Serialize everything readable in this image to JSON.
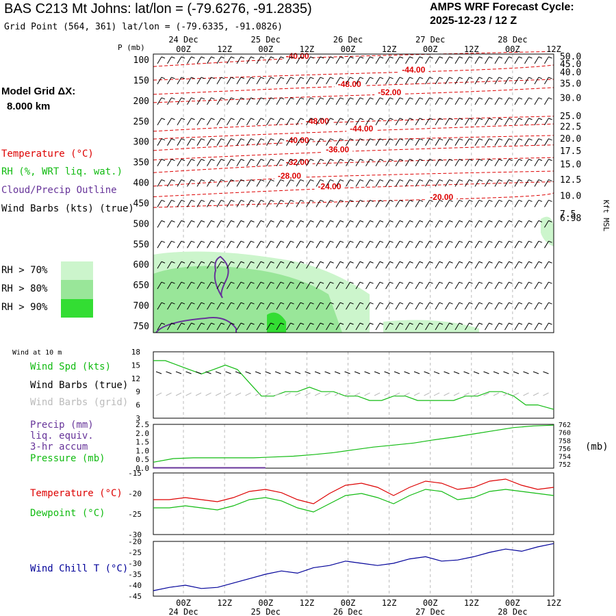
{
  "header": {
    "title": "BAS C213 Mt Johns:  lat/lon = (-79.6276, -91.2835)",
    "grid_point": "Grid Point (564, 361) lat/lon = (-79.6335, -91.0826)",
    "cycle_label": "AMPS WRF Forecast Cycle:",
    "cycle_value": "2025-12-23 / 12  Z",
    "model_grid_label": "Model Grid ΔX:",
    "model_grid_value": "8.000 km"
  },
  "upper_legend": {
    "temperature": "Temperature (°C)",
    "rh": "RH (%, WRT liq. wat.)",
    "cloud": "Cloud/Precip Outline",
    "wind": "Wind Barbs (kts) (true)",
    "rh70": "RH > 70%",
    "rh80": "RH > 80%",
    "rh90": "RH > 90%",
    "colors": {
      "rh70": "#ccf5cc",
      "rh80": "#99e699",
      "rh90": "#33dd33",
      "temp": "#dd0000",
      "rh": "#11bb11",
      "cloud": "#663399"
    }
  },
  "time_axis": {
    "hour_labels": [
      "00Z",
      "12Z",
      "00Z",
      "12Z",
      "00Z",
      "12Z",
      "00Z",
      "12Z",
      "00Z",
      "12Z"
    ],
    "date_labels": [
      "24 Dec",
      "25 Dec",
      "26 Dec",
      "27 Dec",
      "28 Dec"
    ]
  },
  "chart_data": [
    {
      "type": "contour",
      "name": "upper-air-cross-section",
      "ylabel": "P (mb)",
      "pressure_levels": [
        100,
        150,
        200,
        250,
        300,
        350,
        400,
        450,
        500,
        550,
        600,
        650,
        700,
        750
      ],
      "height_label": "Kft MSL",
      "height_ticks": [
        "50.0",
        "45.0",
        "40.0",
        "35.0",
        "30.0",
        "25.0",
        "22.5",
        "20.0",
        "17.5",
        "15.0",
        "12.5",
        "10.0",
        "7.5",
        "6.98"
      ],
      "height_tick_pressures": [
        92,
        110,
        130,
        158,
        193,
        237,
        263,
        292,
        322,
        355,
        392,
        432,
        476,
        486
      ],
      "temperature_labels": [
        {
          "value": "-40.00",
          "t": 0.36,
          "p": 97
        },
        {
          "value": "-44.00",
          "t": 0.65,
          "p": 130
        },
        {
          "value": "-48.00",
          "t": 0.49,
          "p": 165
        },
        {
          "value": "-52.00",
          "t": 0.59,
          "p": 185
        },
        {
          "value": "-48.00",
          "t": 0.41,
          "p": 255
        },
        {
          "value": "-44.00",
          "t": 0.52,
          "p": 274
        },
        {
          "value": "-40.00",
          "t": 0.36,
          "p": 302
        },
        {
          "value": "-36.00",
          "t": 0.46,
          "p": 325
        },
        {
          "value": "-32.00",
          "t": 0.36,
          "p": 356
        },
        {
          "value": "-28.00",
          "t": 0.34,
          "p": 389
        },
        {
          "value": "-24.00",
          "t": 0.44,
          "p": 415
        },
        {
          "value": "-20.00",
          "t": 0.72,
          "p": 441
        }
      ]
    },
    {
      "type": "line",
      "name": "wind-10m",
      "header": "Wind at 10 m",
      "series_label": "Wind Spd (kts)",
      "barbs_true_label": "Wind Barbs (true)",
      "barbs_grid_label": "Wind Barbs (grid)",
      "yticks": [
        3,
        6,
        9,
        12,
        15,
        18
      ],
      "ylim": [
        3,
        18
      ],
      "t": [
        0,
        0.03,
        0.06,
        0.09,
        0.12,
        0.15,
        0.18,
        0.21,
        0.24,
        0.27,
        0.3,
        0.33,
        0.36,
        0.39,
        0.42,
        0.45,
        0.48,
        0.51,
        0.54,
        0.57,
        0.6,
        0.63,
        0.66,
        0.69,
        0.72,
        0.75,
        0.78,
        0.81,
        0.84,
        0.87,
        0.9,
        0.93,
        0.96,
        1.0
      ],
      "values": [
        16,
        16,
        15,
        14,
        13,
        14,
        15,
        14,
        11,
        8,
        8,
        9,
        9,
        10,
        9,
        9,
        8,
        8,
        7,
        7,
        8,
        8,
        7,
        7,
        7,
        7,
        8,
        8,
        9,
        9,
        8,
        6,
        6,
        5
      ]
    },
    {
      "type": "line",
      "name": "precip-pressure",
      "precip_label": "Precip (mm)",
      "precip_sub1": "liq. equiv.",
      "precip_sub2": "3-hr accum",
      "pressure_label": "Pressure (mb)",
      "pressure_units": "(mb)",
      "left_ticks": [
        "2.5",
        "2.0",
        "1.5",
        "1.0",
        "0.5",
        "0.0"
      ],
      "right_ticks": [
        "762",
        "760",
        "758",
        "756",
        "754",
        "752"
      ],
      "ylim_left": [
        0,
        2.5
      ],
      "ylim_right": [
        751,
        762
      ],
      "t": [
        0,
        0.05,
        0.1,
        0.15,
        0.2,
        0.25,
        0.3,
        0.35,
        0.4,
        0.45,
        0.5,
        0.55,
        0.6,
        0.65,
        0.7,
        0.75,
        0.8,
        0.85,
        0.9,
        0.95,
        1.0
      ],
      "pressure": [
        752.5,
        753.4,
        753.6,
        753.6,
        753.6,
        753.6,
        753.8,
        754,
        754.4,
        754.9,
        755.6,
        756.3,
        756.8,
        757.3,
        758.1,
        758.8,
        759.6,
        760.4,
        761.2,
        761.6,
        761.8
      ],
      "precip_t": [
        0,
        0.28
      ],
      "precip": [
        0.02,
        0.02
      ]
    },
    {
      "type": "line",
      "name": "temperature-dewpoint",
      "temperature_label": "Temperature (°C)",
      "dewpoint_label": "Dewpoint (°C)",
      "yticks": [
        -15,
        -20,
        -25,
        -30
      ],
      "ylim": [
        -30,
        -15
      ],
      "t": [
        0,
        0.04,
        0.08,
        0.12,
        0.16,
        0.2,
        0.24,
        0.28,
        0.32,
        0.36,
        0.4,
        0.44,
        0.48,
        0.52,
        0.56,
        0.6,
        0.64,
        0.68,
        0.72,
        0.76,
        0.8,
        0.84,
        0.88,
        0.92,
        0.96,
        1.0
      ],
      "temperature": [
        -21.5,
        -21.5,
        -21,
        -21.5,
        -22,
        -21,
        -19.5,
        -19,
        -19.8,
        -21.5,
        -22.5,
        -20,
        -18,
        -17.5,
        -18.5,
        -20.5,
        -18.5,
        -17,
        -17.5,
        -19,
        -18.5,
        -17,
        -16.5,
        -18,
        -19,
        -18.5
      ],
      "dewpoint": [
        -23.5,
        -23.5,
        -23,
        -23.5,
        -24,
        -23,
        -21.5,
        -21,
        -21.8,
        -23.5,
        -24.5,
        -22.5,
        -20.5,
        -20,
        -21,
        -22.5,
        -20.5,
        -19,
        -19.5,
        -21.5,
        -21,
        -19.5,
        -19,
        -19.5,
        -20,
        -20.5
      ]
    },
    {
      "type": "line",
      "name": "wind-chill",
      "series_label": "Wind Chill T (°C)",
      "yticks": [
        -20,
        -25,
        -30,
        -35,
        -40,
        -45
      ],
      "ylim": [
        -45,
        -20
      ],
      "t": [
        0,
        0.04,
        0.08,
        0.12,
        0.16,
        0.2,
        0.24,
        0.28,
        0.32,
        0.36,
        0.4,
        0.44,
        0.48,
        0.52,
        0.56,
        0.6,
        0.64,
        0.68,
        0.72,
        0.76,
        0.8,
        0.84,
        0.88,
        0.92,
        0.96,
        1.0
      ],
      "values": [
        -42.5,
        -41,
        -40,
        -41.5,
        -41,
        -39,
        -37,
        -35,
        -33.5,
        -34.5,
        -32,
        -31,
        -29,
        -30,
        -31,
        -30,
        -28,
        -27,
        -29,
        -28.5,
        -27,
        -25,
        -23.5,
        -24.5,
        -22.5,
        -21
      ]
    }
  ]
}
